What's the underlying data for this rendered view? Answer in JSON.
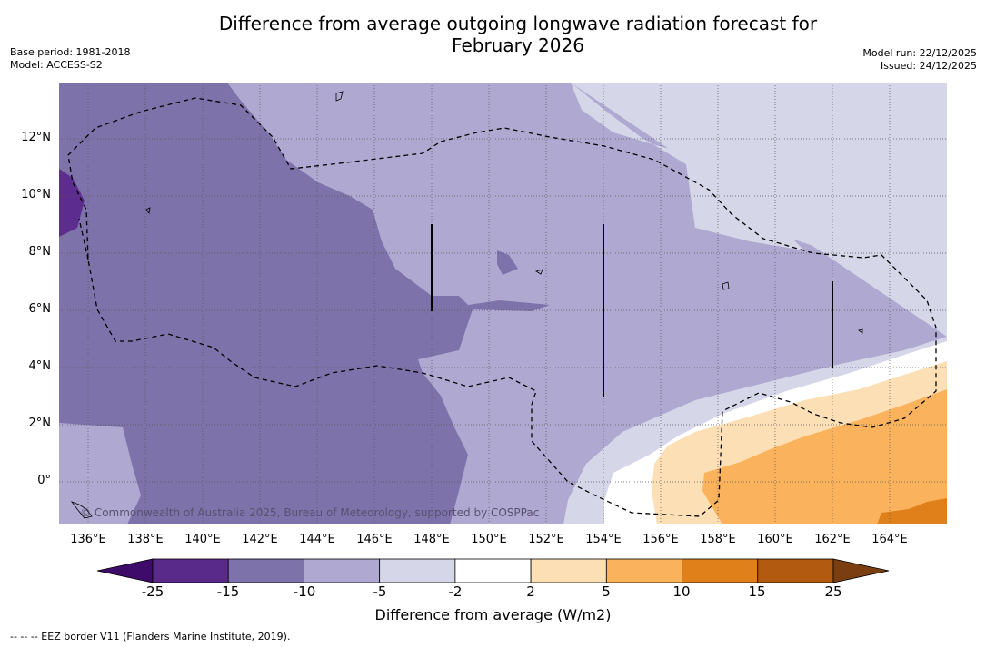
{
  "title": {
    "line1": "Difference from average outgoing longwave radiation forecast for",
    "line2": "February 2026"
  },
  "meta_left": {
    "base_period": "Base period: 1981-2018",
    "model": "Model: ACCESS-S2"
  },
  "meta_right": {
    "model_run": "Model run: 22/12/2025",
    "issued": "Issued: 24/12/2025"
  },
  "map": {
    "copyright": "© Commonwealth of Australia 2025, Bureau of Meteorology, supported by COSPPac",
    "x_ticks": [
      "136°E",
      "138°E",
      "140°E",
      "142°E",
      "144°E",
      "146°E",
      "148°E",
      "150°E",
      "152°E",
      "154°E",
      "156°E",
      "158°E",
      "160°E",
      "162°E",
      "164°E"
    ],
    "y_ticks": [
      "12°N",
      "10°N",
      "8°N",
      "6°N",
      "4°N",
      "2°N",
      "0°"
    ],
    "lon_range": [
      135,
      166
    ],
    "lat_range": [
      -1.5,
      14
    ],
    "colors": {
      "minus25": "#4a1a7e",
      "minus15": "#5c2d8e",
      "minus10": "#7e72ab",
      "minus5": "#afa9d1",
      "minus2": "#d6d6e9",
      "zero": "#ffffff",
      "plus2": "#fddfb6",
      "plus5": "#fab35c",
      "plus10": "#e0801b",
      "plus15": "#b25a0f",
      "plus25": "#7b3e10"
    }
  },
  "colorbar": {
    "labels": [
      "-25",
      "-15",
      "-10",
      "-5",
      "-2",
      "2",
      "5",
      "10",
      "15",
      "25"
    ],
    "colors": [
      "#5a2a8b",
      "#7e72ab",
      "#afa9d1",
      "#d6d6e9",
      "#ffffff",
      "#fddfb6",
      "#fab35c",
      "#e0801b",
      "#b25a0f"
    ],
    "under_color": "#3f0b6a",
    "over_color": "#7b3e10",
    "title": "Difference from average (W/m2)"
  },
  "footer": "-- -- -- EEZ border V11 (Flanders Marine Institute, 2019)."
}
